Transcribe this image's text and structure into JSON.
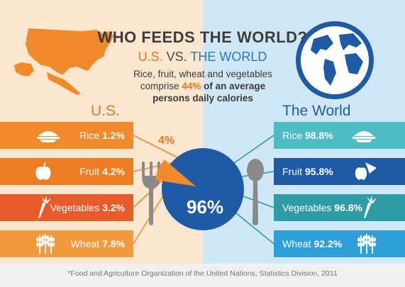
{
  "title": "WHO FEEDS THE WORLD?",
  "subtitle": {
    "us": "U.S.",
    "vs": "VS.",
    "world": "THE WORLD"
  },
  "description": {
    "pre": "Rice, fruit, wheat and vegetables comprise",
    "highlight": "44%",
    "post": "of an average persons daily calories"
  },
  "labels": {
    "us": "U.S.",
    "world": "The World"
  },
  "us_items": [
    {
      "name": "Rice",
      "value": "1.2%",
      "icon": "rice-bowl-icon",
      "color": "#f08a2c"
    },
    {
      "name": "Fruit",
      "value": "4.2%",
      "icon": "apple-icon",
      "color": "#ec7d22"
    },
    {
      "name": "Vegetables",
      "value": "3.2%",
      "icon": "carrot-icon",
      "color": "#e85b2a"
    },
    {
      "name": "Wheat",
      "value": "7.8%",
      "icon": "wheat-icon",
      "color": "#f39a3d"
    }
  ],
  "world_items": [
    {
      "name": "Rice",
      "value": "98.8%",
      "icon": "rice-bowl-icon",
      "color": "#4dbcc3"
    },
    {
      "name": "Fruit",
      "value": "95.8%",
      "icon": "fruit-icon",
      "color": "#1f5aa5"
    },
    {
      "name": "Vegetables",
      "value": "96.8%",
      "icon": "carrot-icon",
      "color": "#2f9ba4"
    },
    {
      "name": "Wheat",
      "value": "92.2%",
      "icon": "wheat-icon",
      "color": "#2e9fd8"
    }
  ],
  "pie": {
    "us_label": "4%",
    "world_label": "96%",
    "us_share": 4,
    "world_share": 96,
    "us_color": "#f08a2c",
    "world_color": "#1f5aa5"
  },
  "footnote": "*Food and Agriculture Organization of the United Nations, Statistics Division, 2011",
  "colors": {
    "us": "#e8761f",
    "world": "#2c79bf",
    "grey_icon": "#8a8a8a"
  }
}
